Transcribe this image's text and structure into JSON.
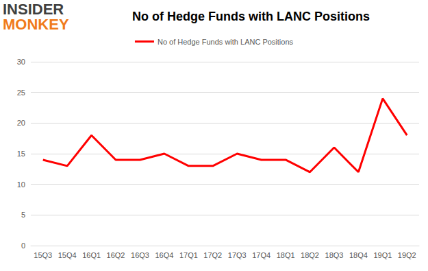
{
  "chart_data": {
    "type": "line",
    "title": "No of Hedge Funds with LANC Positions",
    "annotations": [
      "INSIDER",
      "MONKEY"
    ],
    "categories": [
      "15Q3",
      "15Q4",
      "16Q1",
      "16Q2",
      "16Q3",
      "16Q4",
      "17Q1",
      "17Q2",
      "17Q3",
      "17Q4",
      "18Q1",
      "18Q2",
      "18Q3",
      "18Q4",
      "19Q1",
      "19Q2"
    ],
    "series": [
      {
        "name": "No of Hedge Funds with LANC Positions",
        "color": "#ff0000",
        "values": [
          14,
          13,
          18,
          14,
          14,
          15,
          13,
          13,
          15,
          14,
          14,
          12,
          16,
          12,
          24,
          18
        ]
      }
    ],
    "ylim": [
      0,
      30
    ],
    "yticks": [
      0,
      5,
      10,
      15,
      20,
      25,
      30
    ],
    "grid": true,
    "legend": "top"
  }
}
